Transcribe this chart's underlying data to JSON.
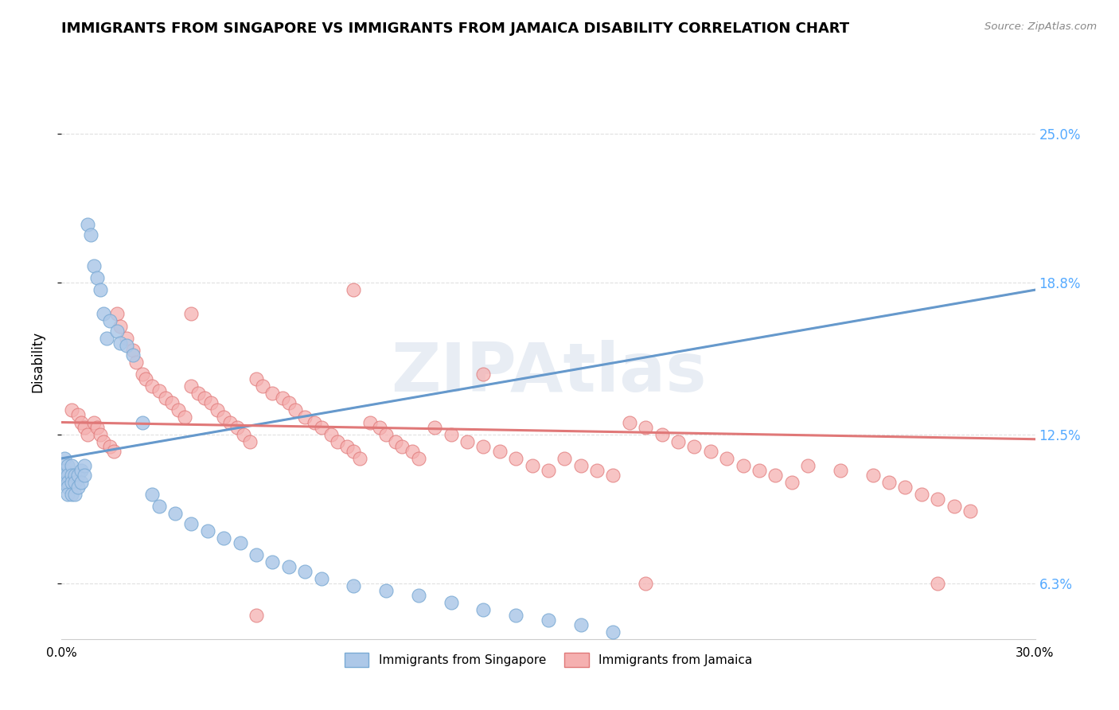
{
  "title": "IMMIGRANTS FROM SINGAPORE VS IMMIGRANTS FROM JAMAICA DISABILITY CORRELATION CHART",
  "source": "Source: ZipAtlas.com",
  "ylabel": "Disability",
  "xlim": [
    0.0,
    0.3
  ],
  "ylim": [
    0.04,
    0.27
  ],
  "yticks": [
    0.063,
    0.125,
    0.188,
    0.25
  ],
  "ytick_labels": [
    "6.3%",
    "12.5%",
    "18.8%",
    "25.0%"
  ],
  "xticks": [
    0.0,
    0.05,
    0.1,
    0.15,
    0.2,
    0.25,
    0.3
  ],
  "xtick_labels": [
    "0.0%",
    "",
    "",
    "",
    "",
    "",
    "30.0%"
  ],
  "singapore_fill": "#adc8e8",
  "singapore_edge": "#7aaad4",
  "jamaica_fill": "#f5b0b0",
  "jamaica_edge": "#e07878",
  "trend_sg_color": "#6699cc",
  "trend_jm_color": "#e07878",
  "bg_color": "#ffffff",
  "grid_color": "#e0e0e0",
  "right_tick_color": "#55aaff",
  "legend_R_color": "#0044cc",
  "legend_box_color": "#dddddd",
  "watermark_color": "#d0dce8",
  "sg_x": [
    0.001,
    0.001,
    0.001,
    0.001,
    0.002,
    0.002,
    0.002,
    0.002,
    0.002,
    0.003,
    0.003,
    0.003,
    0.003,
    0.004,
    0.004,
    0.004,
    0.005,
    0.005,
    0.006,
    0.006,
    0.007,
    0.007,
    0.008,
    0.009,
    0.01,
    0.011,
    0.012,
    0.013,
    0.014,
    0.015,
    0.017,
    0.018,
    0.02,
    0.022,
    0.025,
    0.028,
    0.03,
    0.035,
    0.04,
    0.045,
    0.05,
    0.055,
    0.06,
    0.065,
    0.07,
    0.075,
    0.08,
    0.09,
    0.1,
    0.11,
    0.12,
    0.13,
    0.14,
    0.15,
    0.16,
    0.17
  ],
  "sg_y": [
    0.115,
    0.11,
    0.108,
    0.105,
    0.112,
    0.108,
    0.105,
    0.103,
    0.1,
    0.112,
    0.108,
    0.105,
    0.1,
    0.108,
    0.105,
    0.1,
    0.108,
    0.103,
    0.11,
    0.105,
    0.112,
    0.108,
    0.212,
    0.208,
    0.195,
    0.19,
    0.185,
    0.175,
    0.165,
    0.172,
    0.168,
    0.163,
    0.162,
    0.158,
    0.13,
    0.1,
    0.095,
    0.092,
    0.088,
    0.085,
    0.082,
    0.08,
    0.075,
    0.072,
    0.07,
    0.068,
    0.065,
    0.062,
    0.06,
    0.058,
    0.055,
    0.052,
    0.05,
    0.048,
    0.046,
    0.043
  ],
  "jm_x": [
    0.003,
    0.005,
    0.006,
    0.007,
    0.008,
    0.01,
    0.011,
    0.012,
    0.013,
    0.015,
    0.016,
    0.017,
    0.018,
    0.02,
    0.022,
    0.023,
    0.025,
    0.026,
    0.028,
    0.03,
    0.032,
    0.034,
    0.036,
    0.038,
    0.04,
    0.042,
    0.044,
    0.046,
    0.048,
    0.05,
    0.052,
    0.054,
    0.056,
    0.058,
    0.06,
    0.062,
    0.065,
    0.068,
    0.07,
    0.072,
    0.075,
    0.078,
    0.08,
    0.083,
    0.085,
    0.088,
    0.09,
    0.092,
    0.095,
    0.098,
    0.1,
    0.103,
    0.105,
    0.108,
    0.11,
    0.115,
    0.12,
    0.125,
    0.13,
    0.135,
    0.14,
    0.145,
    0.15,
    0.155,
    0.16,
    0.165,
    0.17,
    0.175,
    0.18,
    0.185,
    0.19,
    0.195,
    0.2,
    0.205,
    0.21,
    0.215,
    0.22,
    0.225,
    0.23,
    0.24,
    0.25,
    0.255,
    0.26,
    0.265,
    0.27,
    0.275,
    0.28,
    0.04,
    0.09,
    0.13,
    0.27,
    0.18,
    0.06
  ],
  "jm_y": [
    0.135,
    0.133,
    0.13,
    0.128,
    0.125,
    0.13,
    0.128,
    0.125,
    0.122,
    0.12,
    0.118,
    0.175,
    0.17,
    0.165,
    0.16,
    0.155,
    0.15,
    0.148,
    0.145,
    0.143,
    0.14,
    0.138,
    0.135,
    0.132,
    0.145,
    0.142,
    0.14,
    0.138,
    0.135,
    0.132,
    0.13,
    0.128,
    0.125,
    0.122,
    0.148,
    0.145,
    0.142,
    0.14,
    0.138,
    0.135,
    0.132,
    0.13,
    0.128,
    0.125,
    0.122,
    0.12,
    0.118,
    0.115,
    0.13,
    0.128,
    0.125,
    0.122,
    0.12,
    0.118,
    0.115,
    0.128,
    0.125,
    0.122,
    0.12,
    0.118,
    0.115,
    0.112,
    0.11,
    0.115,
    0.112,
    0.11,
    0.108,
    0.13,
    0.128,
    0.125,
    0.122,
    0.12,
    0.118,
    0.115,
    0.112,
    0.11,
    0.108,
    0.105,
    0.112,
    0.11,
    0.108,
    0.105,
    0.103,
    0.1,
    0.098,
    0.095,
    0.093,
    0.175,
    0.185,
    0.15,
    0.063,
    0.063,
    0.05
  ]
}
